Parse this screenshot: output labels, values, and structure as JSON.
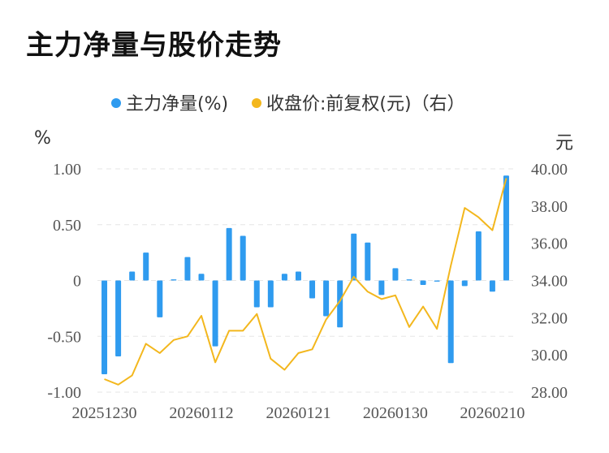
{
  "title": "主力净量与股价走势",
  "legend": [
    {
      "label": "主力净量(%)",
      "color": "#2f9bef"
    },
    {
      "label": "收盘价:前复权(元)（右）",
      "color": "#f3b71d"
    }
  ],
  "units": {
    "left": "%",
    "right": "元"
  },
  "chart_data": {
    "type": "bar+line",
    "y_left": {
      "ticks": [
        "1.00",
        "0.50",
        "0",
        "-0.50",
        "-1.00"
      ],
      "range": [
        -1.0,
        1.0
      ]
    },
    "y_right": {
      "ticks": [
        "40.00",
        "38.00",
        "36.00",
        "34.00",
        "32.00",
        "30.00",
        "28.00"
      ],
      "range": [
        28.0,
        40.0
      ]
    },
    "x_tick_labels": [
      {
        "index": 0,
        "label": "20251230"
      },
      {
        "index": 7,
        "label": "20260112"
      },
      {
        "index": 14,
        "label": "20260121"
      },
      {
        "index": 21,
        "label": "20260130"
      },
      {
        "index": 28,
        "label": "20260210"
      }
    ],
    "series": [
      {
        "name": "主力净量(%)",
        "type": "bar",
        "axis": "left",
        "color": "#2f9bef",
        "values": [
          -0.84,
          -0.68,
          0.08,
          0.25,
          -0.33,
          0.01,
          0.21,
          0.06,
          -0.59,
          0.47,
          0.4,
          -0.24,
          -0.24,
          0.06,
          0.08,
          -0.16,
          -0.32,
          -0.42,
          0.42,
          0.34,
          -0.13,
          0.11,
          0.01,
          -0.04,
          -0.01,
          -0.74,
          -0.05,
          0.44,
          -0.1,
          0.94
        ]
      },
      {
        "name": "收盘价:前复权(元)（右）",
        "type": "line",
        "axis": "right",
        "color": "#f3b71d",
        "values": [
          28.7,
          28.4,
          28.9,
          30.6,
          30.1,
          30.8,
          31.0,
          32.1,
          29.6,
          31.3,
          31.3,
          32.2,
          29.8,
          29.2,
          30.1,
          30.3,
          31.9,
          32.9,
          34.2,
          33.4,
          33.0,
          33.2,
          31.5,
          32.6,
          31.4,
          34.8,
          37.9,
          37.4,
          36.7,
          39.5
        ]
      }
    ]
  }
}
